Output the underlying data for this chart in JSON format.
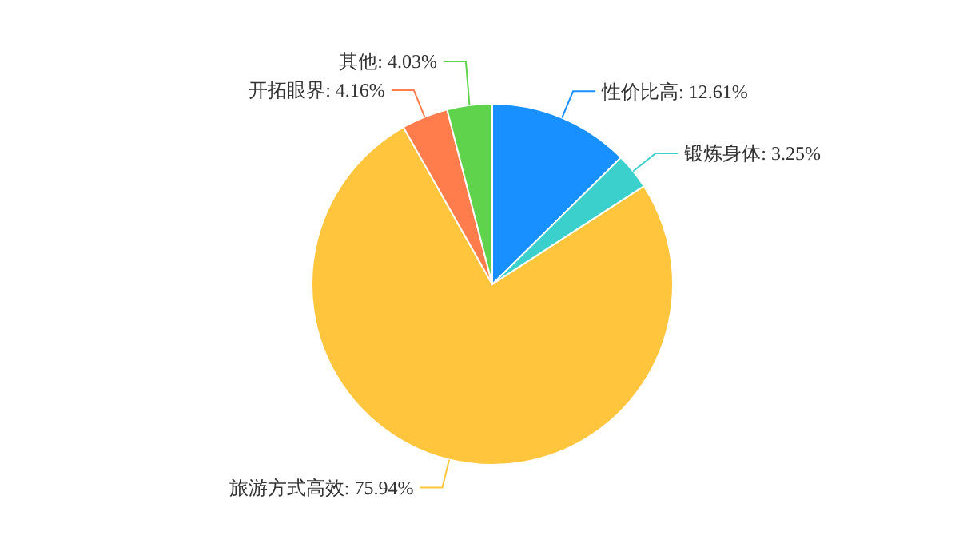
{
  "chart_data": {
    "type": "pie",
    "categories": [
      "性价比高",
      "锻炼身体",
      "旅游方式高效",
      "开拓眼界",
      "其他"
    ],
    "values": [
      12.61,
      3.25,
      75.94,
      4.16,
      4.03
    ],
    "colors": [
      "#1890ff",
      "#3cd0cc",
      "#ffc53d",
      "#ff7d4d",
      "#5fd34b"
    ],
    "value_labels": [
      "12.61%",
      "3.25%",
      "75.94%",
      "4.16%",
      "4.03%"
    ],
    "legend": false
  }
}
